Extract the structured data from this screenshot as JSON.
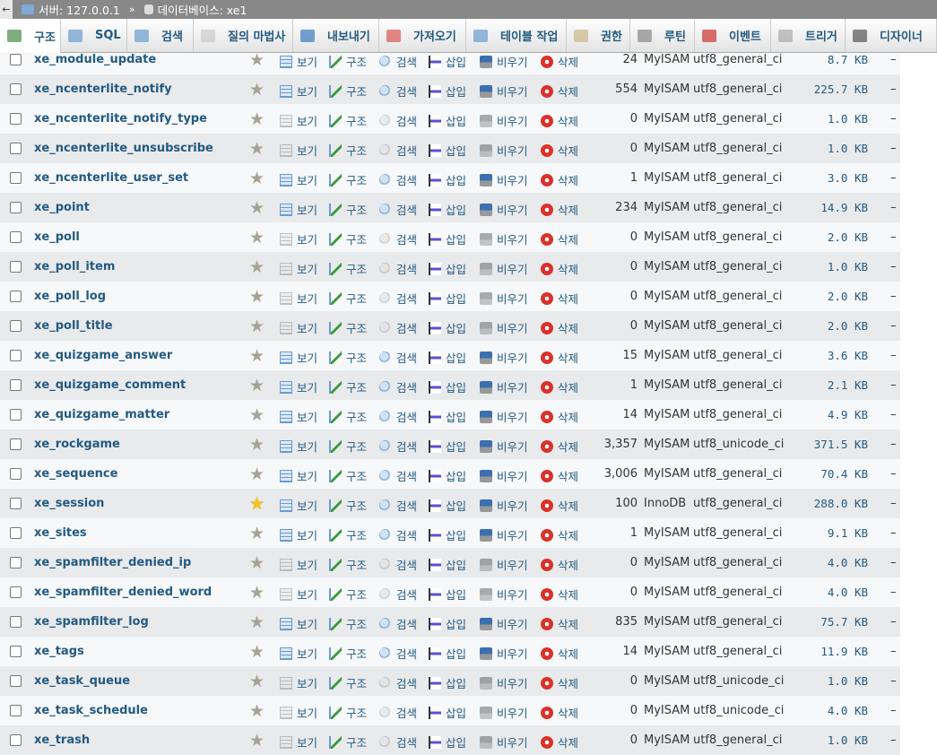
{
  "breadcrumb": {
    "back": "←",
    "server": "서버: 127.0.0.1",
    "separator": "»",
    "database": "데이터베이스: xe1"
  },
  "tabs": [
    {
      "label": "구조",
      "icon": "structure-icon",
      "active": true
    },
    {
      "label": "SQL",
      "icon": "sql-icon"
    },
    {
      "label": "검색",
      "icon": "search-icon"
    },
    {
      "label": "질의 마법사",
      "icon": "query-icon"
    },
    {
      "label": "내보내기",
      "icon": "export-icon"
    },
    {
      "label": "가져오기",
      "icon": "import-icon"
    },
    {
      "label": "테이블 작업",
      "icon": "wrench-icon"
    },
    {
      "label": "권한",
      "icon": "privileges-icon"
    },
    {
      "label": "루틴",
      "icon": "routines-icon"
    },
    {
      "label": "이벤트",
      "icon": "events-icon"
    },
    {
      "label": "트리거",
      "icon": "triggers-icon"
    },
    {
      "label": "디자이너",
      "icon": "designer-icon"
    }
  ],
  "actions": {
    "browse": "보기",
    "structure": "구조",
    "search": "검색",
    "insert": "삽입",
    "empty": "비우기",
    "drop": "삭제"
  },
  "tables": [
    {
      "name": "xe_module_update",
      "rows": "24",
      "engine": "MyISAM",
      "collation": "utf8_general_ci",
      "size": "8.7 KB",
      "overhead": "–"
    },
    {
      "name": "xe_ncenterlite_notify",
      "rows": "554",
      "engine": "MyISAM",
      "collation": "utf8_general_ci",
      "size": "225.7 KB",
      "overhead": "–"
    },
    {
      "name": "xe_ncenterlite_notify_type",
      "rows": "0",
      "engine": "MyISAM",
      "collation": "utf8_general_ci",
      "size": "1.0 KB",
      "overhead": "–"
    },
    {
      "name": "xe_ncenterlite_unsubscribe",
      "rows": "0",
      "engine": "MyISAM",
      "collation": "utf8_general_ci",
      "size": "1.0 KB",
      "overhead": "–"
    },
    {
      "name": "xe_ncenterlite_user_set",
      "rows": "1",
      "engine": "MyISAM",
      "collation": "utf8_general_ci",
      "size": "3.0 KB",
      "overhead": "–"
    },
    {
      "name": "xe_point",
      "rows": "234",
      "engine": "MyISAM",
      "collation": "utf8_general_ci",
      "size": "14.9 KB",
      "overhead": "–"
    },
    {
      "name": "xe_poll",
      "rows": "0",
      "engine": "MyISAM",
      "collation": "utf8_general_ci",
      "size": "2.0 KB",
      "overhead": "–"
    },
    {
      "name": "xe_poll_item",
      "rows": "0",
      "engine": "MyISAM",
      "collation": "utf8_general_ci",
      "size": "1.0 KB",
      "overhead": "–"
    },
    {
      "name": "xe_poll_log",
      "rows": "0",
      "engine": "MyISAM",
      "collation": "utf8_general_ci",
      "size": "2.0 KB",
      "overhead": "–"
    },
    {
      "name": "xe_poll_title",
      "rows": "0",
      "engine": "MyISAM",
      "collation": "utf8_general_ci",
      "size": "2.0 KB",
      "overhead": "–"
    },
    {
      "name": "xe_quizgame_answer",
      "rows": "15",
      "engine": "MyISAM",
      "collation": "utf8_general_ci",
      "size": "3.6 KB",
      "overhead": "–"
    },
    {
      "name": "xe_quizgame_comment",
      "rows": "1",
      "engine": "MyISAM",
      "collation": "utf8_general_ci",
      "size": "2.1 KB",
      "overhead": "–"
    },
    {
      "name": "xe_quizgame_matter",
      "rows": "14",
      "engine": "MyISAM",
      "collation": "utf8_general_ci",
      "size": "4.9 KB",
      "overhead": "–"
    },
    {
      "name": "xe_rockgame",
      "rows": "3,357",
      "engine": "MyISAM",
      "collation": "utf8_unicode_ci",
      "size": "371.5 KB",
      "overhead": "–"
    },
    {
      "name": "xe_sequence",
      "rows": "3,006",
      "engine": "MyISAM",
      "collation": "utf8_general_ci",
      "size": "70.4 KB",
      "overhead": "–"
    },
    {
      "name": "xe_session",
      "rows": "100",
      "engine": "InnoDB",
      "collation": "utf8_general_ci",
      "size": "288.0 KB",
      "overhead": "–",
      "favorite": true
    },
    {
      "name": "xe_sites",
      "rows": "1",
      "engine": "MyISAM",
      "collation": "utf8_general_ci",
      "size": "9.1 KB",
      "overhead": "–"
    },
    {
      "name": "xe_spamfilter_denied_ip",
      "rows": "0",
      "engine": "MyISAM",
      "collation": "utf8_general_ci",
      "size": "4.0 KB",
      "overhead": "–"
    },
    {
      "name": "xe_spamfilter_denied_word",
      "rows": "0",
      "engine": "MyISAM",
      "collation": "utf8_general_ci",
      "size": "4.0 KB",
      "overhead": "–"
    },
    {
      "name": "xe_spamfilter_log",
      "rows": "835",
      "engine": "MyISAM",
      "collation": "utf8_general_ci",
      "size": "75.7 KB",
      "overhead": "–"
    },
    {
      "name": "xe_tags",
      "rows": "14",
      "engine": "MyISAM",
      "collation": "utf8_general_ci",
      "size": "11.9 KB",
      "overhead": "–"
    },
    {
      "name": "xe_task_queue",
      "rows": "0",
      "engine": "MyISAM",
      "collation": "utf8_unicode_ci",
      "size": "1.0 KB",
      "overhead": "–"
    },
    {
      "name": "xe_task_schedule",
      "rows": "0",
      "engine": "MyISAM",
      "collation": "utf8_unicode_ci",
      "size": "4.0 KB",
      "overhead": "–"
    },
    {
      "name": "xe_trash",
      "rows": "0",
      "engine": "MyISAM",
      "collation": "utf8_general_ci",
      "size": "1.0 KB",
      "overhead": "–"
    }
  ]
}
